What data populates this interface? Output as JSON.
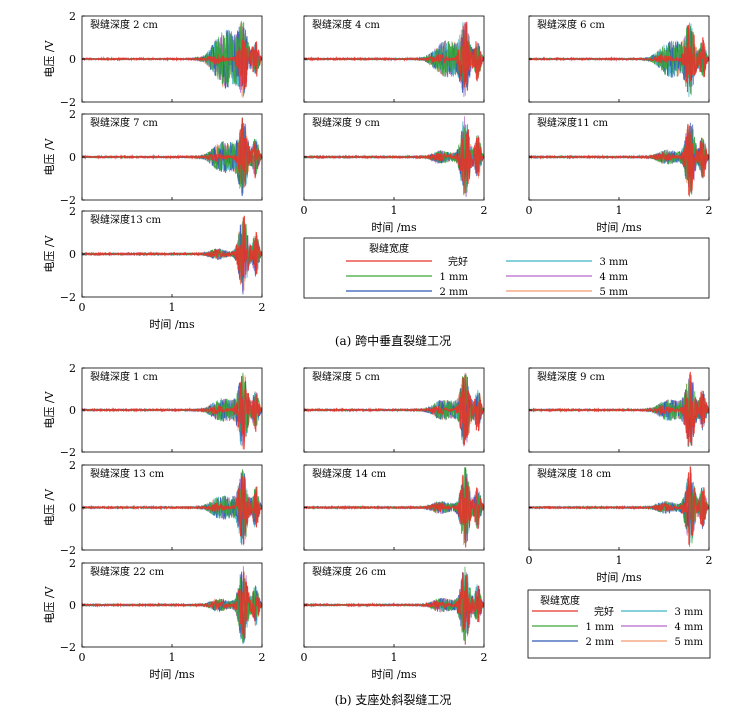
{
  "colors": {
    "完好": "#e8332a",
    "1 mm": "#3aa63a",
    "2 mm": "#2f57b5",
    "3 mm": "#3fb5c4",
    "4 mm": "#b768c9",
    "5 mm": "#f29a6e"
  },
  "chart_data": [
    {
      "type": "line",
      "group": "a",
      "title": "裂缝深度 2 cm",
      "xlabel": "",
      "ylabel": "电压 /V",
      "xlim": [
        0,
        2
      ],
      "ylim": [
        -2,
        2
      ],
      "xticks": [],
      "yticks": [
        "2",
        "0",
        "−2"
      ],
      "damage": 1.0
    },
    {
      "type": "line",
      "group": "a",
      "title": "裂缝深度 4 cm",
      "xlabel": "",
      "ylabel": "",
      "xlim": [
        0,
        2
      ],
      "ylim": [
        -2,
        2
      ],
      "xticks": [],
      "yticks": [],
      "damage": 0.6
    },
    {
      "type": "line",
      "group": "a",
      "title": "裂缝深度 6 cm",
      "xlabel": "",
      "ylabel": "",
      "xlim": [
        0,
        2
      ],
      "ylim": [
        -2,
        2
      ],
      "xticks": [],
      "yticks": [],
      "damage": 0.6
    },
    {
      "type": "line",
      "group": "a",
      "title": "裂缝深度 7 cm",
      "xlabel": "",
      "ylabel": "电压 /V",
      "xlim": [
        0,
        2
      ],
      "ylim": [
        -2,
        2
      ],
      "xticks": [],
      "yticks": [
        "2",
        "0",
        "−2"
      ],
      "damage": 0.5
    },
    {
      "type": "line",
      "group": "a",
      "title": "裂缝深度 9 cm",
      "xlabel": "时间 /ms",
      "ylabel": "",
      "xlim": [
        0,
        2
      ],
      "ylim": [
        -2,
        2
      ],
      "xticks": [
        "0",
        "1",
        "2"
      ],
      "yticks": [],
      "damage": 0.1
    },
    {
      "type": "line",
      "group": "a",
      "title": "裂缝深度11 cm",
      "xlabel": "时间 /ms",
      "ylabel": "",
      "xlim": [
        0,
        2
      ],
      "ylim": [
        -2,
        2
      ],
      "xticks": [
        "0",
        "1",
        "2"
      ],
      "yticks": [],
      "damage": 0.15
    },
    {
      "type": "line",
      "group": "a",
      "title": "裂缝深度13 cm",
      "xlabel": "时间 /ms",
      "ylabel": "电压 /V",
      "xlim": [
        0,
        2
      ],
      "ylim": [
        -2,
        2
      ],
      "xticks": [
        "0",
        "1",
        "2"
      ],
      "yticks": [
        "2",
        "0",
        "−2"
      ],
      "damage": 0.05
    },
    {
      "type": "line",
      "group": "b",
      "title": "裂缝深度 1 cm",
      "xlabel": "",
      "ylabel": "电压 /V",
      "xlim": [
        0,
        2
      ],
      "ylim": [
        -2,
        2
      ],
      "xticks": [],
      "yticks": [
        "2",
        "0",
        "−2"
      ],
      "damage": 0.35
    },
    {
      "type": "line",
      "group": "b",
      "title": "裂缝深度 5 cm",
      "xlabel": "",
      "ylabel": "",
      "xlim": [
        0,
        2
      ],
      "ylim": [
        -2,
        2
      ],
      "xticks": [],
      "yticks": [],
      "damage": 0.3
    },
    {
      "type": "line",
      "group": "b",
      "title": "裂缝深度 9 cm",
      "xlabel": "",
      "ylabel": "",
      "xlim": [
        0,
        2
      ],
      "ylim": [
        -2,
        2
      ],
      "xticks": [],
      "yticks": [],
      "damage": 0.3
    },
    {
      "type": "line",
      "group": "b",
      "title": "裂缝深度 13 cm",
      "xlabel": "",
      "ylabel": "电压 /V",
      "xlim": [
        0,
        2
      ],
      "ylim": [
        -2,
        2
      ],
      "xticks": [],
      "yticks": [
        "2",
        "0",
        "−2"
      ],
      "damage": 0.35
    },
    {
      "type": "line",
      "group": "b",
      "title": "裂缝深度 14 cm",
      "xlabel": "",
      "ylabel": "",
      "xlim": [
        0,
        2
      ],
      "ylim": [
        -2,
        2
      ],
      "xticks": [],
      "yticks": [],
      "damage": 0.1
    },
    {
      "type": "line",
      "group": "b",
      "title": "裂缝深度 18 cm",
      "xlabel": "时间 /ms",
      "ylabel": "",
      "xlim": [
        0,
        2
      ],
      "ylim": [
        -2,
        2
      ],
      "xticks": [
        "0",
        "1",
        "2"
      ],
      "yticks": [],
      "damage": 0.1
    },
    {
      "type": "line",
      "group": "b",
      "title": "裂缝深度 22 cm",
      "xlabel": "时间 /ms",
      "ylabel": "电压 /V",
      "xlim": [
        0,
        2
      ],
      "ylim": [
        -2,
        2
      ],
      "xticks": [
        "0",
        "1",
        "2"
      ],
      "yticks": [
        "2",
        "0",
        "−2"
      ],
      "damage": 0.1
    },
    {
      "type": "line",
      "group": "b",
      "title": "裂缝深度 26 cm",
      "xlabel": "时间 /ms",
      "ylabel": "",
      "xlim": [
        0,
        2
      ],
      "ylim": [
        -2,
        2
      ],
      "xticks": [
        "0",
        "1",
        "2"
      ],
      "yticks": [],
      "damage": 0.15
    }
  ],
  "legend": {
    "title": "裂缝宽度",
    "items": [
      "完好",
      "1 mm",
      "2 mm",
      "3 mm",
      "4 mm",
      "5 mm"
    ]
  },
  "captions": {
    "a": "(a) 跨中垂直裂缝工况",
    "b": "(b) 支座处斜裂缝工况"
  }
}
